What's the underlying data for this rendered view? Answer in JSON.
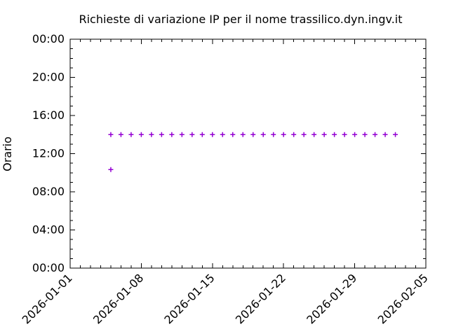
{
  "chart_data": {
    "type": "scatter",
    "title": "Richieste di variazione IP per il nome trassilico.dyn.ingv.it",
    "xlabel": "",
    "ylabel": "Orario",
    "background_color": "#ffffff",
    "axis_color": "#000000",
    "grid": false,
    "legend": "none",
    "x_start_date": "2026-01-01",
    "x_end_date": "2026-02-05",
    "x_span_days": 35,
    "x_minor_tick_interval_days": 1,
    "x_major_tick_interval_days": 7,
    "x_major_ticks": [
      "2026-01-01",
      "2026-01-08",
      "2026-01-15",
      "2026-01-22",
      "2026-01-29",
      "2026-02-05"
    ],
    "y_range_hours": [
      0,
      24
    ],
    "y_minor_tick_interval_hours": 1,
    "y_major_tick_interval_hours": 4,
    "y_ticks": [
      {
        "hour": 24,
        "label": "00:00"
      },
      {
        "hour": 20,
        "label": "20:00"
      },
      {
        "hour": 16,
        "label": "16:00"
      },
      {
        "hour": 12,
        "label": "12:00"
      },
      {
        "hour": 8,
        "label": "08:00"
      },
      {
        "hour": 4,
        "label": "04:00"
      },
      {
        "hour": 0,
        "label": "00:00"
      }
    ],
    "point_style": "plus",
    "point_color": "#9400d3",
    "points": [
      {
        "date": "2026-01-05",
        "time": "10:20"
      },
      {
        "date": "2026-01-05",
        "time": "14:00"
      },
      {
        "date": "2026-01-06",
        "time": "14:00"
      },
      {
        "date": "2026-01-07",
        "time": "14:00"
      },
      {
        "date": "2026-01-08",
        "time": "14:00"
      },
      {
        "date": "2026-01-09",
        "time": "14:00"
      },
      {
        "date": "2026-01-10",
        "time": "14:00"
      },
      {
        "date": "2026-01-11",
        "time": "14:00"
      },
      {
        "date": "2026-01-12",
        "time": "14:00"
      },
      {
        "date": "2026-01-13",
        "time": "14:00"
      },
      {
        "date": "2026-01-14",
        "time": "14:00"
      },
      {
        "date": "2026-01-15",
        "time": "14:00"
      },
      {
        "date": "2026-01-16",
        "time": "14:00"
      },
      {
        "date": "2026-01-17",
        "time": "14:00"
      },
      {
        "date": "2026-01-18",
        "time": "14:00"
      },
      {
        "date": "2026-01-19",
        "time": "14:00"
      },
      {
        "date": "2026-01-20",
        "time": "14:00"
      },
      {
        "date": "2026-01-21",
        "time": "14:00"
      },
      {
        "date": "2026-01-22",
        "time": "14:00"
      },
      {
        "date": "2026-01-23",
        "time": "14:00"
      },
      {
        "date": "2026-01-24",
        "time": "14:00"
      },
      {
        "date": "2026-01-25",
        "time": "14:00"
      },
      {
        "date": "2026-01-26",
        "time": "14:00"
      },
      {
        "date": "2026-01-27",
        "time": "14:00"
      },
      {
        "date": "2026-01-28",
        "time": "14:00"
      },
      {
        "date": "2026-01-29",
        "time": "14:00"
      },
      {
        "date": "2026-01-30",
        "time": "14:00"
      },
      {
        "date": "2026-01-31",
        "time": "14:00"
      },
      {
        "date": "2026-02-01",
        "time": "14:00"
      },
      {
        "date": "2026-02-02",
        "time": "14:00"
      }
    ]
  }
}
